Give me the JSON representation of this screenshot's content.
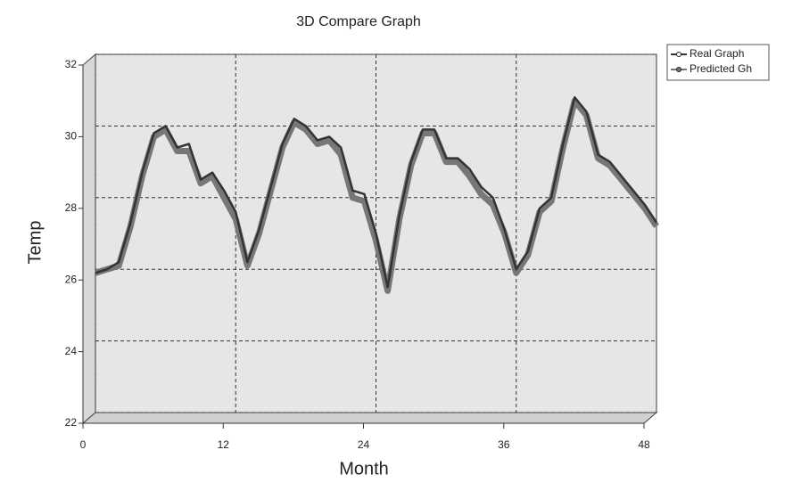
{
  "chart_data": {
    "type": "line",
    "title": "3D Compare Graph",
    "x_label": "Month",
    "y_label": "Temp",
    "x": [
      0,
      1,
      2,
      3,
      4,
      5,
      6,
      7,
      8,
      9,
      10,
      11,
      12,
      13,
      14,
      15,
      16,
      17,
      18,
      19,
      20,
      21,
      22,
      23,
      24,
      25,
      26,
      27,
      28,
      29,
      30,
      31,
      32,
      33,
      34,
      35,
      36,
      37,
      38,
      39,
      40,
      41,
      42,
      43,
      44,
      45,
      46,
      47,
      48
    ],
    "series": [
      {
        "name": "Real Graph",
        "color": "#333333",
        "values": [
          25.9,
          26.0,
          26.2,
          27.3,
          28.7,
          29.8,
          30.0,
          29.4,
          29.5,
          28.5,
          28.7,
          28.2,
          27.6,
          26.2,
          27.1,
          28.3,
          29.5,
          30.2,
          30.0,
          29.6,
          29.7,
          29.4,
          28.2,
          28.1,
          27.0,
          25.5,
          27.5,
          29.0,
          29.9,
          29.9,
          29.1,
          29.1,
          28.8,
          28.3,
          28.0,
          27.1,
          26.0,
          26.5,
          27.7,
          28.0,
          29.5,
          30.8,
          30.4,
          29.2,
          29.0,
          28.6,
          28.2,
          27.8,
          27.3
        ]
      },
      {
        "name": "Predicted Gh",
        "color": "#777777",
        "values": [
          25.9,
          26.0,
          26.1,
          27.2,
          28.6,
          29.7,
          29.9,
          29.3,
          29.3,
          28.4,
          28.6,
          28.0,
          27.4,
          26.1,
          27.0,
          28.2,
          29.4,
          30.1,
          29.9,
          29.5,
          29.6,
          29.2,
          28.0,
          27.9,
          26.8,
          25.4,
          27.4,
          28.9,
          29.8,
          29.8,
          29.0,
          29.0,
          28.6,
          28.1,
          27.8,
          27.0,
          25.9,
          26.4,
          27.6,
          27.9,
          29.4,
          30.7,
          30.3,
          29.1,
          28.9,
          28.5,
          28.1,
          27.7,
          27.2
        ]
      }
    ],
    "xlim": [
      0,
      48
    ],
    "xticks": [
      0,
      12,
      24,
      36,
      48
    ],
    "ylim": [
      22,
      32
    ],
    "yticks": [
      22,
      24,
      26,
      28,
      30,
      32
    ],
    "grid": true,
    "legend": "top-right"
  }
}
